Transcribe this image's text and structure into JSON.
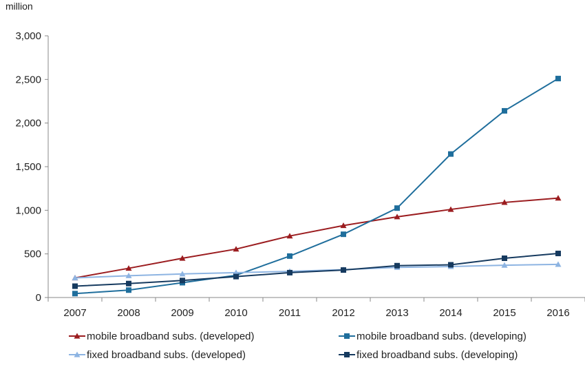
{
  "chart_data": {
    "type": "line",
    "unit_label": "million",
    "x": [
      "2007",
      "2008",
      "2009",
      "2010",
      "2011",
      "2012",
      "2013",
      "2014",
      "2015",
      "2016"
    ],
    "ylim": [
      0,
      3000
    ],
    "yticks": [
      0,
      500,
      1000,
      1500,
      2000,
      2500,
      3000
    ],
    "ytick_labels": [
      "0",
      "500",
      "1,000",
      "1,500",
      "2,000",
      "2,500",
      "3,000"
    ],
    "grid": false,
    "legend_position": "bottom",
    "series": [
      {
        "name": "mobile broadband subs. (developed)",
        "color": "#9b1c1f",
        "marker": "triangle",
        "values": [
          225,
          335,
          450,
          555,
          705,
          825,
          925,
          1010,
          1090,
          1140
        ]
      },
      {
        "name": "mobile broadband subs. (developing)",
        "color": "#1f6e9c",
        "marker": "square",
        "values": [
          45,
          85,
          170,
          255,
          475,
          725,
          1025,
          1645,
          2140,
          2510
        ]
      },
      {
        "name": "fixed broadband subs. (developed)",
        "color": "#8db4e2",
        "marker": "triangle",
        "values": [
          225,
          250,
          270,
          285,
          300,
          320,
          345,
          355,
          370,
          380
        ]
      },
      {
        "name": "fixed broadband subs. (developing)",
        "color": "#163a5f",
        "marker": "square",
        "values": [
          130,
          160,
          195,
          240,
          285,
          315,
          365,
          375,
          450,
          505
        ]
      }
    ]
  }
}
